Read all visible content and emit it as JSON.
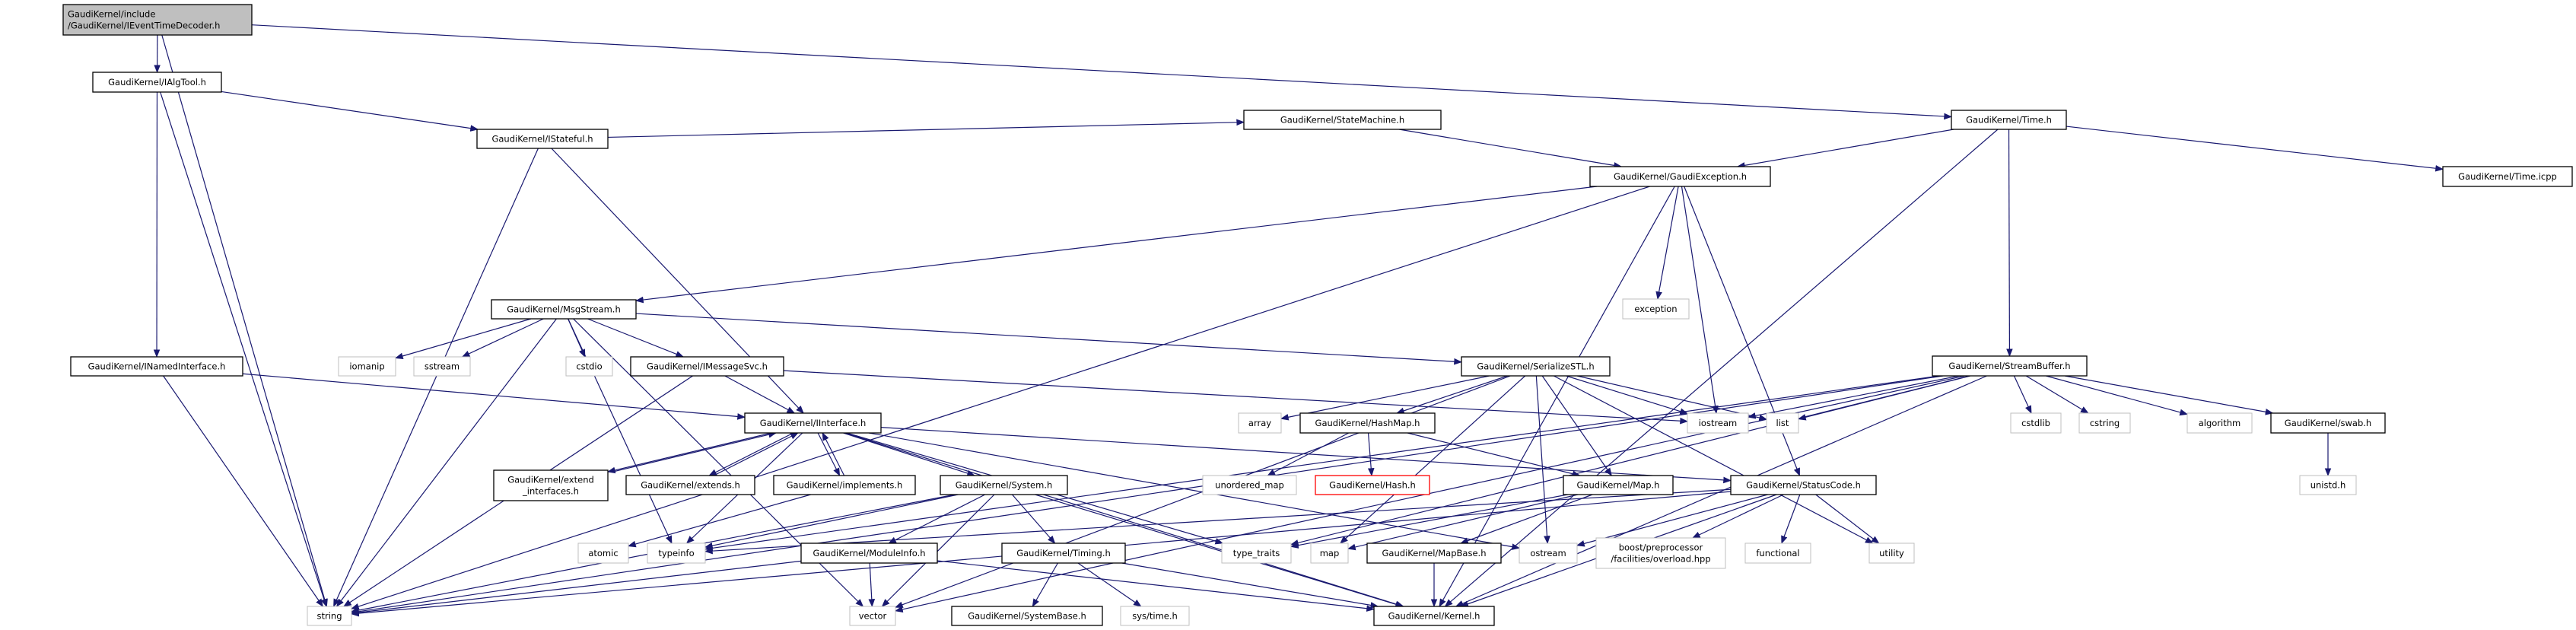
{
  "colors": {
    "edge": "#191970",
    "root_fill": "#bfbfbf",
    "documented_border": "#000000",
    "system_border": "#bfbfbf",
    "missing_border": "#ff0000"
  },
  "nodes": {
    "root": {
      "lines": [
        "GaudiKernel/include",
        "/GaudiKernel/IEventTimeDecoder.h"
      ],
      "kind": "root"
    },
    "ialgtool": {
      "lines": [
        "GaudiKernel/IAlgTool.h"
      ],
      "kind": "doc"
    },
    "istateful": {
      "lines": [
        "GaudiKernel/IStateful.h"
      ],
      "kind": "doc"
    },
    "statemachine": {
      "lines": [
        "GaudiKernel/StateMachine.h"
      ],
      "kind": "doc"
    },
    "time": {
      "lines": [
        "GaudiKernel/Time.h"
      ],
      "kind": "doc"
    },
    "timeicpp": {
      "lines": [
        "GaudiKernel/Time.icpp"
      ],
      "kind": "doc"
    },
    "gaudiexception": {
      "lines": [
        "GaudiKernel/GaudiException.h"
      ],
      "kind": "doc"
    },
    "msgstream": {
      "lines": [
        "GaudiKernel/MsgStream.h"
      ],
      "kind": "doc"
    },
    "exception": {
      "lines": [
        "exception"
      ],
      "kind": "system"
    },
    "inamedinterface": {
      "lines": [
        "GaudiKernel/INamedInterface.h"
      ],
      "kind": "doc"
    },
    "iomanip": {
      "lines": [
        "iomanip"
      ],
      "kind": "system"
    },
    "sstream": {
      "lines": [
        "sstream"
      ],
      "kind": "system"
    },
    "cstdio": {
      "lines": [
        "cstdio"
      ],
      "kind": "system"
    },
    "imessagesvc": {
      "lines": [
        "GaudiKernel/IMessageSvc.h"
      ],
      "kind": "doc"
    },
    "serializestl": {
      "lines": [
        "GaudiKernel/SerializeSTL.h"
      ],
      "kind": "doc"
    },
    "streambuffer": {
      "lines": [
        "GaudiKernel/StreamBuffer.h"
      ],
      "kind": "doc"
    },
    "iinterface": {
      "lines": [
        "GaudiKernel/IInterface.h"
      ],
      "kind": "doc"
    },
    "array": {
      "lines": [
        "array"
      ],
      "kind": "system"
    },
    "hashmap": {
      "lines": [
        "GaudiKernel/HashMap.h"
      ],
      "kind": "doc"
    },
    "iostream": {
      "lines": [
        "iostream"
      ],
      "kind": "system"
    },
    "list": {
      "lines": [
        "list"
      ],
      "kind": "system"
    },
    "cstdlib": {
      "lines": [
        "cstdlib"
      ],
      "kind": "system"
    },
    "cstring": {
      "lines": [
        "cstring"
      ],
      "kind": "system"
    },
    "algorithm": {
      "lines": [
        "algorithm"
      ],
      "kind": "system"
    },
    "swab": {
      "lines": [
        "GaudiKernel/swab.h"
      ],
      "kind": "doc"
    },
    "extendinterfaces": {
      "lines": [
        "GaudiKernel/extend",
        "_interfaces.h"
      ],
      "kind": "doc"
    },
    "extends": {
      "lines": [
        "GaudiKernel/extends.h"
      ],
      "kind": "doc"
    },
    "implements": {
      "lines": [
        "GaudiKernel/implements.h"
      ],
      "kind": "doc"
    },
    "system": {
      "lines": [
        "GaudiKernel/System.h"
      ],
      "kind": "doc"
    },
    "unorderedmap": {
      "lines": [
        "unordered_map"
      ],
      "kind": "system"
    },
    "hash": {
      "lines": [
        "GaudiKernel/Hash.h"
      ],
      "kind": "missing"
    },
    "map_h": {
      "lines": [
        "GaudiKernel/Map.h"
      ],
      "kind": "doc"
    },
    "statuscode": {
      "lines": [
        "GaudiKernel/StatusCode.h"
      ],
      "kind": "doc"
    },
    "unistd": {
      "lines": [
        "unistd.h"
      ],
      "kind": "system"
    },
    "atomic": {
      "lines": [
        "atomic"
      ],
      "kind": "system"
    },
    "typeinfo": {
      "lines": [
        "typeinfo"
      ],
      "kind": "system"
    },
    "moduleinfo": {
      "lines": [
        "GaudiKernel/ModuleInfo.h"
      ],
      "kind": "doc"
    },
    "timing": {
      "lines": [
        "GaudiKernel/Timing.h"
      ],
      "kind": "doc"
    },
    "typetraits": {
      "lines": [
        "type_traits"
      ],
      "kind": "system"
    },
    "map": {
      "lines": [
        "map"
      ],
      "kind": "system"
    },
    "mapbase": {
      "lines": [
        "GaudiKernel/MapBase.h"
      ],
      "kind": "doc"
    },
    "ostream": {
      "lines": [
        "ostream"
      ],
      "kind": "system"
    },
    "boost": {
      "lines": [
        "boost/preprocessor",
        "/facilities/overload.hpp"
      ],
      "kind": "system"
    },
    "functional": {
      "lines": [
        "functional"
      ],
      "kind": "system"
    },
    "utility": {
      "lines": [
        "utility"
      ],
      "kind": "system"
    },
    "string": {
      "lines": [
        "string"
      ],
      "kind": "system"
    },
    "vector": {
      "lines": [
        "vector"
      ],
      "kind": "system"
    },
    "systembase": {
      "lines": [
        "GaudiKernel/SystemBase.h"
      ],
      "kind": "doc"
    },
    "systime": {
      "lines": [
        "sys/time.h"
      ],
      "kind": "system"
    },
    "kernel": {
      "lines": [
        "GaudiKernel/Kernel.h"
      ],
      "kind": "doc"
    }
  },
  "edges": [
    [
      "root",
      "ialgtool"
    ],
    [
      "root",
      "string"
    ],
    [
      "root",
      "time"
    ],
    [
      "ialgtool",
      "istateful"
    ],
    [
      "ialgtool",
      "inamedinterface"
    ],
    [
      "ialgtool",
      "string"
    ],
    [
      "istateful",
      "statemachine"
    ],
    [
      "istateful",
      "iinterface"
    ],
    [
      "istateful",
      "string"
    ],
    [
      "statemachine",
      "gaudiexception"
    ],
    [
      "time",
      "gaudiexception"
    ],
    [
      "time",
      "streambuffer"
    ],
    [
      "time",
      "timeicpp"
    ],
    [
      "time",
      "kernel"
    ],
    [
      "gaudiexception",
      "msgstream"
    ],
    [
      "gaudiexception",
      "exception"
    ],
    [
      "gaudiexception",
      "iostream"
    ],
    [
      "gaudiexception",
      "statuscode"
    ],
    [
      "gaudiexception",
      "kernel"
    ],
    [
      "gaudiexception",
      "string"
    ],
    [
      "msgstream",
      "iomanip"
    ],
    [
      "msgstream",
      "sstream"
    ],
    [
      "msgstream",
      "cstdio"
    ],
    [
      "msgstream",
      "imessagesvc"
    ],
    [
      "msgstream",
      "serializestl"
    ],
    [
      "msgstream",
      "string"
    ],
    [
      "msgstream",
      "typeinfo"
    ],
    [
      "msgstream",
      "vector"
    ],
    [
      "inamedinterface",
      "iinterface"
    ],
    [
      "inamedinterface",
      "string"
    ],
    [
      "imessagesvc",
      "iinterface"
    ],
    [
      "imessagesvc",
      "iostream"
    ],
    [
      "imessagesvc",
      "string"
    ],
    [
      "iinterface",
      "extendinterfaces"
    ],
    [
      "iinterface",
      "extends"
    ],
    [
      "iinterface",
      "implements"
    ],
    [
      "iinterface",
      "system"
    ],
    [
      "iinterface",
      "statuscode"
    ],
    [
      "iinterface",
      "kernel"
    ],
    [
      "iinterface",
      "ostream"
    ],
    [
      "iinterface",
      "typetraits"
    ],
    [
      "iinterface",
      "typeinfo"
    ],
    [
      "extendinterfaces",
      "iinterface"
    ],
    [
      "extends",
      "iinterface"
    ],
    [
      "implements",
      "iinterface"
    ],
    [
      "implements",
      "atomic"
    ],
    [
      "system",
      "moduleinfo"
    ],
    [
      "system",
      "timing"
    ],
    [
      "system",
      "kernel"
    ],
    [
      "system",
      "string"
    ],
    [
      "system",
      "typeinfo"
    ],
    [
      "system",
      "vector"
    ],
    [
      "moduleinfo",
      "string"
    ],
    [
      "moduleinfo",
      "vector"
    ],
    [
      "moduleinfo",
      "kernel"
    ],
    [
      "timing",
      "systembase"
    ],
    [
      "timing",
      "systime"
    ],
    [
      "timing",
      "kernel"
    ],
    [
      "serializestl",
      "array"
    ],
    [
      "serializestl",
      "hashmap"
    ],
    [
      "serializestl",
      "map_h"
    ],
    [
      "serializestl",
      "list"
    ],
    [
      "serializestl",
      "iostream"
    ],
    [
      "serializestl",
      "map"
    ],
    [
      "serializestl",
      "vector"
    ],
    [
      "serializestl",
      "ostream"
    ],
    [
      "serializestl",
      "utility"
    ],
    [
      "hashmap",
      "unorderedmap"
    ],
    [
      "hashmap",
      "hash"
    ],
    [
      "hashmap",
      "map_h"
    ],
    [
      "map_h",
      "mapbase"
    ],
    [
      "map_h",
      "map"
    ],
    [
      "map_h",
      "typetraits"
    ],
    [
      "mapbase",
      "kernel"
    ],
    [
      "statuscode",
      "boost"
    ],
    [
      "statuscode",
      "functional"
    ],
    [
      "statuscode",
      "utility"
    ],
    [
      "statuscode",
      "ostream"
    ],
    [
      "statuscode",
      "kernel"
    ],
    [
      "statuscode",
      "string"
    ],
    [
      "statuscode",
      "typeinfo"
    ],
    [
      "streambuffer",
      "cstdlib"
    ],
    [
      "streambuffer",
      "cstring"
    ],
    [
      "streambuffer",
      "algorithm"
    ],
    [
      "streambuffer",
      "swab"
    ],
    [
      "streambuffer",
      "list"
    ],
    [
      "streambuffer",
      "iostream"
    ],
    [
      "streambuffer",
      "kernel"
    ],
    [
      "streambuffer",
      "string"
    ],
    [
      "streambuffer",
      "vector"
    ],
    [
      "streambuffer",
      "typeinfo"
    ],
    [
      "streambuffer",
      "typetraits"
    ],
    [
      "swab",
      "unistd"
    ]
  ]
}
